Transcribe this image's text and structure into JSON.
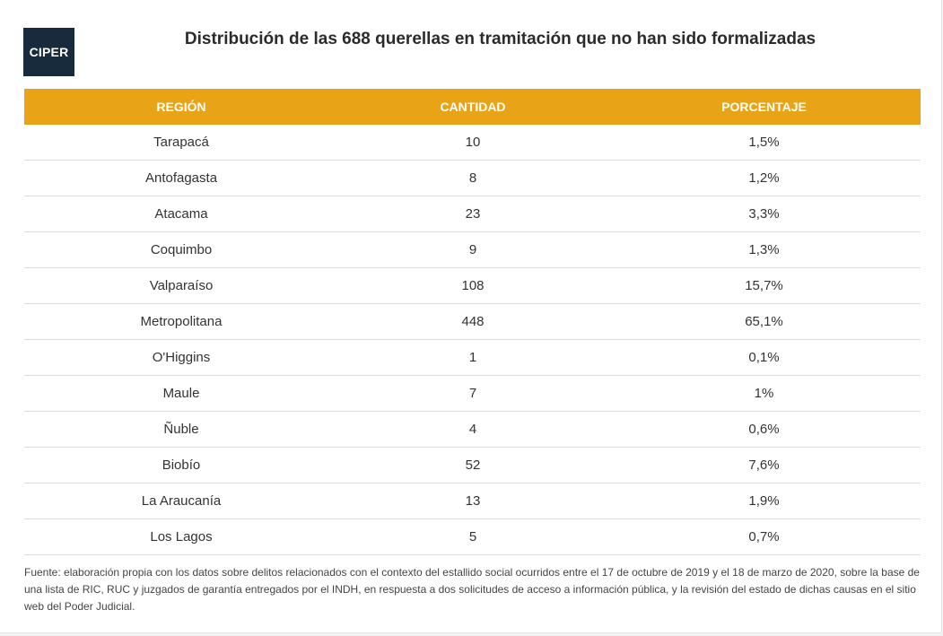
{
  "logo_text": "CIPER",
  "title": "Distribución de las 688 querellas en tramitación que no han sido formalizadas",
  "chart_data": {
    "type": "table",
    "title": "Distribución de las 688 querellas en tramitación que no han sido formalizadas",
    "columns": [
      "REGIÓN",
      "CANTIDAD",
      "PORCENTAJE"
    ],
    "rows": [
      [
        "Tarapacá",
        "10",
        "1,5%"
      ],
      [
        "Antofagasta",
        "8",
        "1,2%"
      ],
      [
        "Atacama",
        "23",
        "3,3%"
      ],
      [
        "Coquimbo",
        "9",
        "1,3%"
      ],
      [
        "Valparaíso",
        "108",
        "15,7%"
      ],
      [
        "Metropolitana",
        "448",
        "65,1%"
      ],
      [
        "O'Higgins",
        "1",
        "0,1%"
      ],
      [
        "Maule",
        "7",
        "1%"
      ],
      [
        "Ñuble",
        "4",
        "0,6%"
      ],
      [
        "Biobío",
        "52",
        "7,6%"
      ],
      [
        "La Araucanía",
        "13",
        "1,9%"
      ],
      [
        "Los Lagos",
        "5",
        "0,7%"
      ]
    ]
  },
  "colors": {
    "header_bg": "#e8a317",
    "logo_bg": "#172b3d"
  },
  "source": "Fuente: elaboración propia con los datos sobre delitos relacionados con el contexto del estallido social ocurridos entre el 17 de octubre de 2019 y el 18 de marzo de 2020, sobre la base de una lista de RIC, RUC y juzgados de garantía entregados por el INDH, en respuesta a dos solicitudes de acceso a información pública, y la revisión del estado de dichas causas en el sitio web del Poder Judicial."
}
